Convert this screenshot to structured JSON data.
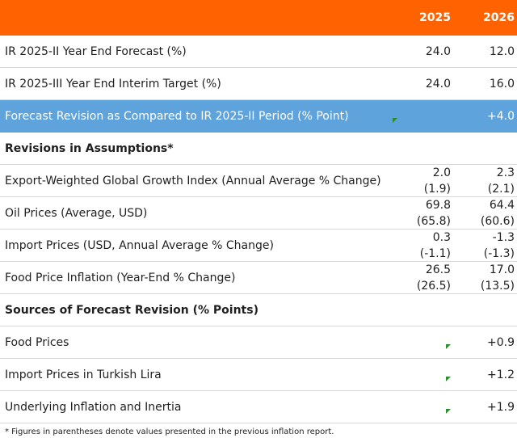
{
  "header": {
    "col1": "2025",
    "col2": "2026"
  },
  "rows_top": [
    {
      "label": "IR 2025-II Year End Forecast (%)",
      "v1": "24.0",
      "v2": "12.0"
    },
    {
      "label": "IR 2025-III Year End Interim Target (%)",
      "v1": "24.0",
      "v2": "16.0"
    }
  ],
  "revision": {
    "label": "Forecast Revision as Compared to IR 2025-II Period (% Point)",
    "v1": "",
    "v2": "+4.0"
  },
  "assumptions": {
    "title": "Revisions in Assumptions*",
    "rows": [
      {
        "label": "Export-Weighted Global Growth Index (Annual Average % Change)",
        "v1": "2.0",
        "v1_prev": "(1.9)",
        "v2": "2.3",
        "v2_prev": "(2.1)"
      },
      {
        "label": "Oil Prices (Average, USD)",
        "v1": "69.8",
        "v1_prev": "(65.8)",
        "v2": "64.4",
        "v2_prev": "(60.6)"
      },
      {
        "label": "Import Prices (USD, Annual Average % Change)",
        "v1": "0.3",
        "v1_prev": "(-1.1)",
        "v2": "-1.3",
        "v2_prev": "(-1.3)"
      },
      {
        "label": "Food Price Inflation (Year-End % Change)",
        "v1": "26.5",
        "v1_prev": "(26.5)",
        "v2": "17.0",
        "v2_prev": "(13.5)"
      }
    ]
  },
  "sources": {
    "title": "Sources of Forecast Revision (% Points)",
    "rows": [
      {
        "label": "Food Prices",
        "v1": "",
        "v2": "+0.9"
      },
      {
        "label": "Import Prices in Turkish Lira",
        "v1": "",
        "v2": "+1.2"
      },
      {
        "label": "Underlying Inflation and Inertia",
        "v1": "",
        "v2": "+1.9"
      }
    ]
  },
  "footnote": "* Figures in parentheses denote values presented in the previous inflation report.",
  "colors": {
    "header": "#ff6200",
    "highlight": "#5fa3dc",
    "flag": "#2e8b2e"
  }
}
